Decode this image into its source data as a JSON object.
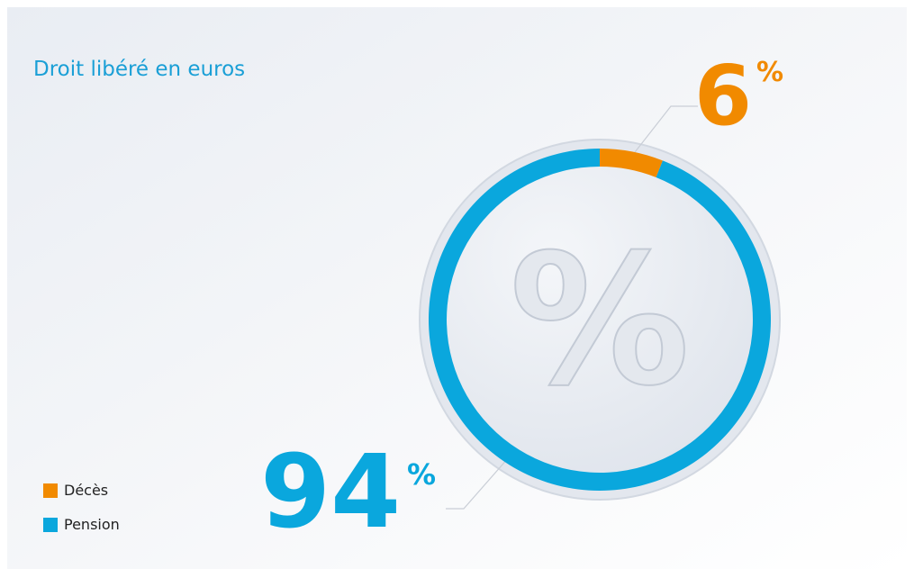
{
  "chart_data": {
    "type": "donut",
    "title": "Droit libéré en euros",
    "categories": [
      "Décès",
      "Pension"
    ],
    "values": [
      6,
      94
    ],
    "colors": [
      "#f18a00",
      "#0aa7dd"
    ],
    "unit_label": "%",
    "center_label": "%",
    "legend": "bottom-left"
  }
}
